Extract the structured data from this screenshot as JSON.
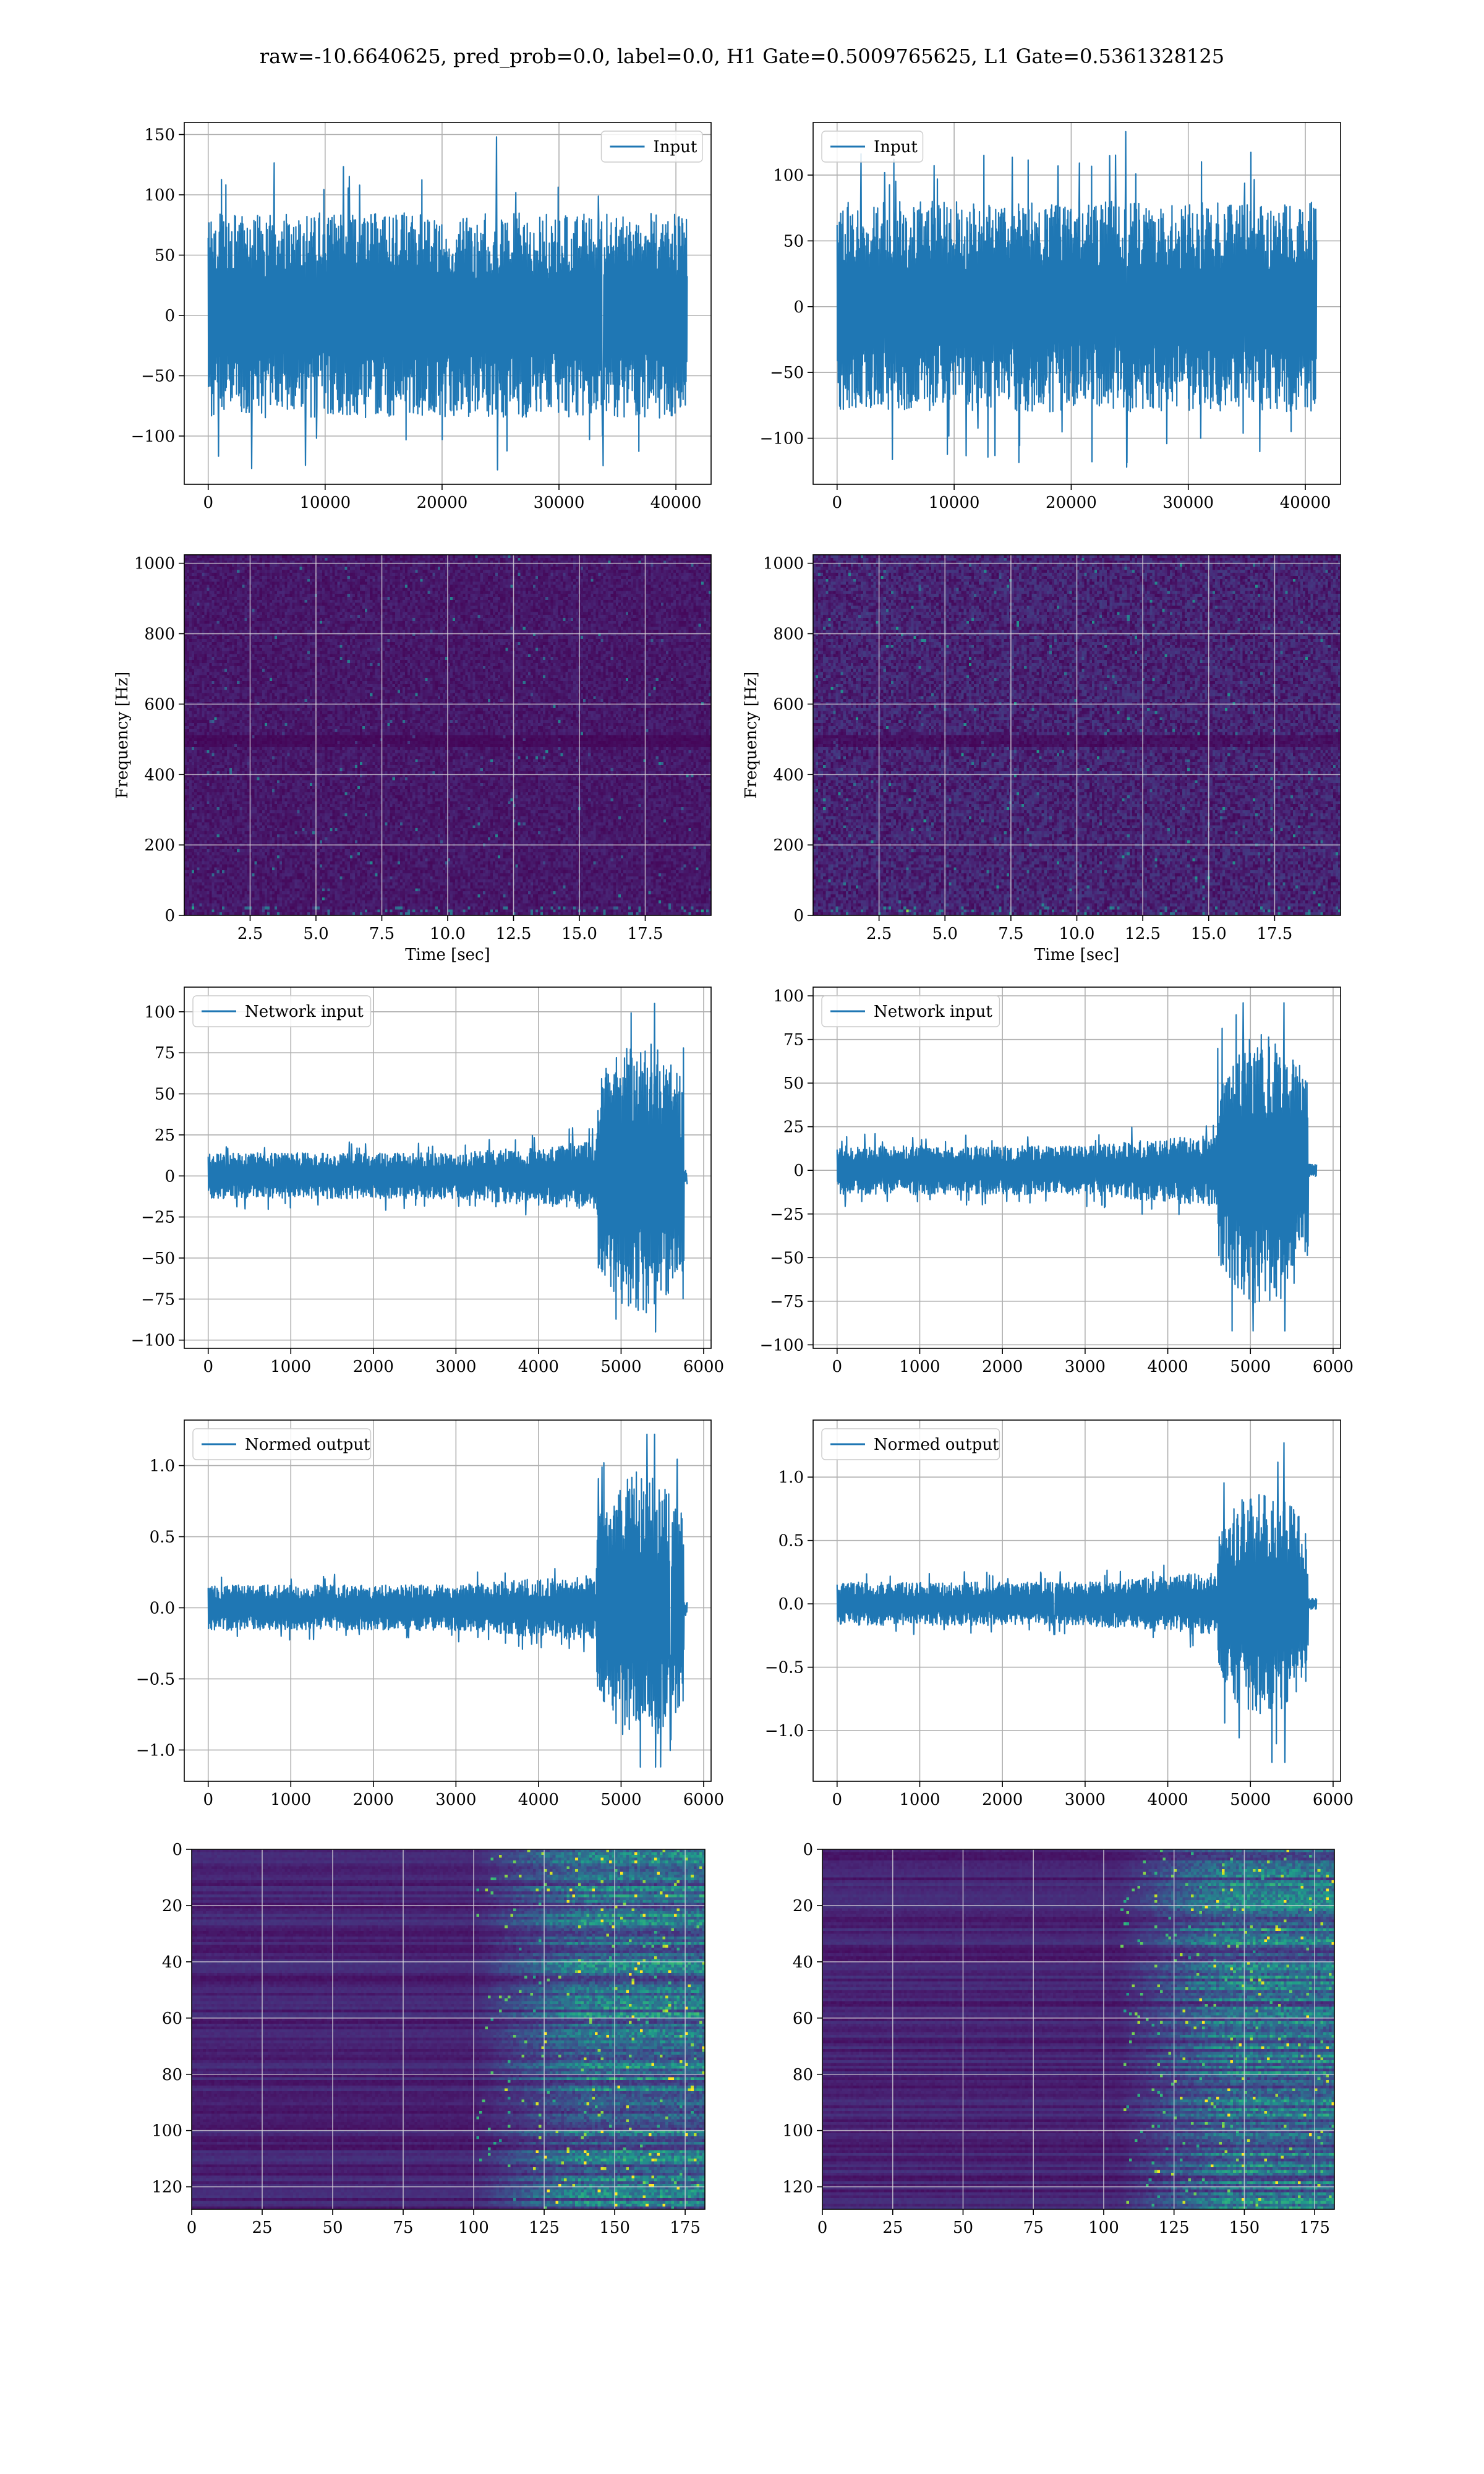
{
  "figure": {
    "title": "raw=-10.6640625, pred_prob=0.0, label=0.0, H1 Gate=0.5009765625, L1 Gate=0.5361328125"
  },
  "colors": {
    "series": "#1f77b4",
    "grid": "#b0b0b0",
    "viridis_low": "#440154",
    "viridis_mid": "#21918c",
    "viridis_high": "#fde725"
  },
  "chart_data": [
    {
      "id": "h1-input",
      "type": "line",
      "title": "",
      "xlabel": "",
      "ylabel": "",
      "legend": "top-right",
      "series": [
        {
          "name": "Input"
        }
      ],
      "xlim": [
        -2048,
        43008
      ],
      "ylim": [
        -140,
        160
      ],
      "xticks": [
        0,
        10000,
        20000,
        30000,
        40000
      ],
      "xtick_labels": [
        "0",
        "10000",
        "20000",
        "30000",
        "40000"
      ],
      "yticks": [
        -100,
        -50,
        0,
        50,
        100,
        150
      ],
      "ytick_labels": [
        "−100",
        "−50",
        "0",
        "50",
        "100",
        "150"
      ],
      "grid": true,
      "signal": {
        "x_range": [
          0,
          40960
        ],
        "envelope": 85,
        "peak_max": 148,
        "peak_min": -128
      }
    },
    {
      "id": "l1-input",
      "type": "line",
      "title": "",
      "xlabel": "",
      "ylabel": "",
      "legend": "top-left",
      "series": [
        {
          "name": "Input"
        }
      ],
      "xlim": [
        -2048,
        43008
      ],
      "ylim": [
        -135,
        140
      ],
      "xticks": [
        0,
        10000,
        20000,
        30000,
        40000
      ],
      "xtick_labels": [
        "0",
        "10000",
        "20000",
        "30000",
        "40000"
      ],
      "yticks": [
        -100,
        -50,
        0,
        50,
        100
      ],
      "ytick_labels": [
        "−100",
        "−50",
        "0",
        "50",
        "100"
      ],
      "grid": true,
      "signal": {
        "x_range": [
          0,
          40960
        ],
        "envelope": 80,
        "peak_max": 133,
        "peak_min": -122
      }
    },
    {
      "id": "h1-spectrogram",
      "type": "heatmap",
      "title": "",
      "xlabel": "Time [sec]",
      "ylabel": "Frequency [Hz]",
      "xlim": [
        0,
        20
      ],
      "ylim": [
        0,
        1024
      ],
      "xticks": [
        2.5,
        5.0,
        7.5,
        10.0,
        12.5,
        15.0,
        17.5
      ],
      "xtick_labels": [
        "2.5",
        "5.0",
        "7.5",
        "10.0",
        "12.5",
        "15.0",
        "17.5"
      ],
      "yticks": [
        0,
        200,
        400,
        600,
        800,
        1000
      ],
      "ytick_labels": [
        "0",
        "200",
        "400",
        "600",
        "800",
        "1000"
      ],
      "grid": true,
      "colormap": "viridis",
      "intensity": "low"
    },
    {
      "id": "l1-spectrogram",
      "type": "heatmap",
      "title": "",
      "xlabel": "Time [sec]",
      "ylabel": "Frequency [Hz]",
      "xlim": [
        0,
        20
      ],
      "ylim": [
        0,
        1024
      ],
      "xticks": [
        2.5,
        5.0,
        7.5,
        10.0,
        12.5,
        15.0,
        17.5
      ],
      "xtick_labels": [
        "2.5",
        "5.0",
        "7.5",
        "10.0",
        "12.5",
        "15.0",
        "17.5"
      ],
      "yticks": [
        0,
        200,
        400,
        600,
        800,
        1000
      ],
      "ytick_labels": [
        "0",
        "200",
        "400",
        "600",
        "800",
        "1000"
      ],
      "grid": true,
      "colormap": "viridis",
      "intensity": "medium"
    },
    {
      "id": "h1-network-input",
      "type": "line",
      "title": "",
      "xlabel": "",
      "ylabel": "",
      "legend": "top-left",
      "series": [
        {
          "name": "Network input"
        }
      ],
      "xlim": [
        -290,
        6090
      ],
      "ylim": [
        -105,
        115
      ],
      "xticks": [
        0,
        1000,
        2000,
        3000,
        4000,
        5000,
        6000
      ],
      "xtick_labels": [
        "0",
        "1000",
        "2000",
        "3000",
        "4000",
        "5000",
        "6000"
      ],
      "yticks": [
        -100,
        -75,
        -50,
        -25,
        0,
        25,
        50,
        75,
        100
      ],
      "ytick_labels": [
        "−100",
        "−75",
        "−50",
        "−25",
        "0",
        "25",
        "50",
        "75",
        "100"
      ],
      "grid": true,
      "signal": {
        "x_range": [
          0,
          5800
        ],
        "base_envelope": 14,
        "burst_start": 4700,
        "burst_end": 5760,
        "burst_envelope": 70,
        "peak_max": 105,
        "peak_min": -95
      }
    },
    {
      "id": "l1-network-input",
      "type": "line",
      "title": "",
      "xlabel": "",
      "ylabel": "",
      "legend": "top-left",
      "series": [
        {
          "name": "Network input"
        }
      ],
      "xlim": [
        -290,
        6090
      ],
      "ylim": [
        -102,
        105
      ],
      "xticks": [
        0,
        1000,
        2000,
        3000,
        4000,
        5000,
        6000
      ],
      "xtick_labels": [
        "0",
        "1000",
        "2000",
        "3000",
        "4000",
        "5000",
        "6000"
      ],
      "yticks": [
        -100,
        -75,
        -50,
        -25,
        0,
        25,
        50,
        75,
        100
      ],
      "ytick_labels": [
        "−100",
        "−75",
        "−50",
        "−25",
        "0",
        "25",
        "50",
        "75",
        "100"
      ],
      "grid": true,
      "signal": {
        "x_range": [
          0,
          5800
        ],
        "base_envelope": 14,
        "burst_start": 4600,
        "burst_end": 5700,
        "burst_envelope": 65,
        "peak_max": 96,
        "peak_min": -92
      }
    },
    {
      "id": "h1-normed-output",
      "type": "line",
      "title": "",
      "xlabel": "",
      "ylabel": "",
      "legend": "top-left",
      "series": [
        {
          "name": "Normed output"
        }
      ],
      "xlim": [
        -290,
        6090
      ],
      "ylim": [
        -1.22,
        1.32
      ],
      "xticks": [
        0,
        1000,
        2000,
        3000,
        4000,
        5000,
        6000
      ],
      "xtick_labels": [
        "0",
        "1000",
        "2000",
        "3000",
        "4000",
        "5000",
        "6000"
      ],
      "yticks": [
        -1.0,
        -0.5,
        0.0,
        0.5,
        1.0
      ],
      "ytick_labels": [
        "−1.0",
        "−0.5",
        "0.0",
        "0.5",
        "1.0"
      ],
      "grid": true,
      "signal": {
        "x_range": [
          0,
          5800
        ],
        "base_envelope": 0.16,
        "burst_start": 4700,
        "burst_end": 5760,
        "burst_envelope": 0.8,
        "peak_max": 1.22,
        "peak_min": -1.12
      }
    },
    {
      "id": "l1-normed-output",
      "type": "line",
      "title": "",
      "xlabel": "",
      "ylabel": "",
      "legend": "top-left",
      "series": [
        {
          "name": "Normed output"
        }
      ],
      "xlim": [
        -290,
        6090
      ],
      "ylim": [
        -1.4,
        1.45
      ],
      "xticks": [
        0,
        1000,
        2000,
        3000,
        4000,
        5000,
        6000
      ],
      "xtick_labels": [
        "0",
        "1000",
        "2000",
        "3000",
        "4000",
        "5000",
        "6000"
      ],
      "yticks": [
        -1.0,
        -0.5,
        0.0,
        0.5,
        1.0
      ],
      "ytick_labels": [
        "−1.0",
        "−0.5",
        "0.0",
        "0.5",
        "1.0"
      ],
      "grid": true,
      "signal": {
        "x_range": [
          0,
          5800
        ],
        "base_envelope": 0.17,
        "burst_start": 4600,
        "burst_end": 5700,
        "burst_envelope": 0.75,
        "peak_max": 1.27,
        "peak_min": -1.25
      }
    },
    {
      "id": "h1-feature-map",
      "type": "heatmap",
      "title": "",
      "xlabel": "",
      "ylabel": "",
      "xlim": [
        0,
        182
      ],
      "ylim": [
        128,
        0
      ],
      "xticks": [
        0,
        25,
        50,
        75,
        100,
        125,
        150,
        175
      ],
      "xtick_labels": [
        "0",
        "25",
        "50",
        "75",
        "100",
        "125",
        "150",
        "175"
      ],
      "yticks": [
        0,
        20,
        40,
        60,
        80,
        100,
        120
      ],
      "ytick_labels": [
        "0",
        "20",
        "40",
        "60",
        "80",
        "100",
        "120"
      ],
      "grid": true,
      "colormap": "viridis",
      "activity_onset": 120
    },
    {
      "id": "l1-feature-map",
      "type": "heatmap",
      "title": "",
      "xlabel": "",
      "ylabel": "",
      "xlim": [
        0,
        182
      ],
      "ylim": [
        128,
        0
      ],
      "xticks": [
        0,
        25,
        50,
        75,
        100,
        125,
        150,
        175
      ],
      "xtick_labels": [
        "0",
        "25",
        "50",
        "75",
        "100",
        "125",
        "150",
        "175"
      ],
      "yticks": [
        0,
        20,
        40,
        60,
        80,
        100,
        120
      ],
      "ytick_labels": [
        "0",
        "20",
        "40",
        "60",
        "80",
        "100",
        "120"
      ],
      "grid": true,
      "colormap": "viridis",
      "activity_onset": 125
    }
  ]
}
